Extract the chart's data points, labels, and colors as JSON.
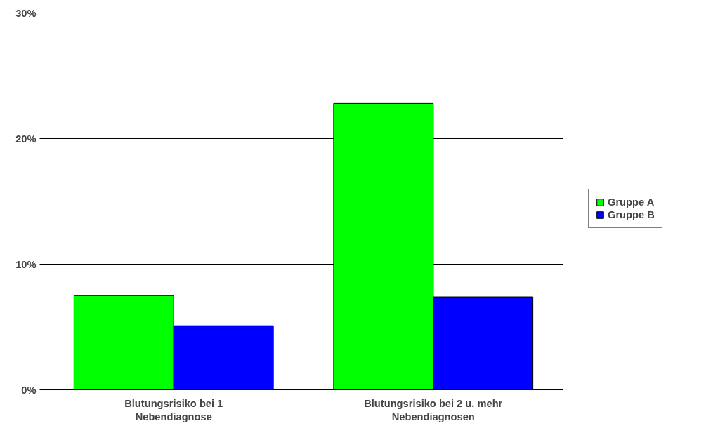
{
  "chart_data": {
    "type": "bar",
    "categories": [
      "Blutungsrisiko bei 1\nNebendiagnose",
      "Blutungsrisiko bei 2 u. mehr\nNebendiagnosen"
    ],
    "series": [
      {
        "name": "Gruppe A",
        "color": "#00ff00",
        "values": [
          7.5,
          22.8
        ]
      },
      {
        "name": "Gruppe B",
        "color": "#0000ff",
        "values": [
          5.1,
          7.4
        ]
      }
    ],
    "ylim": [
      0,
      30
    ],
    "yticks": [
      {
        "value": 0,
        "label": "0%"
      },
      {
        "value": 10,
        "label": "10%"
      },
      {
        "value": 20,
        "label": "20%"
      },
      {
        "value": 30,
        "label": "30%"
      }
    ],
    "grid": "y",
    "legend": "right"
  }
}
